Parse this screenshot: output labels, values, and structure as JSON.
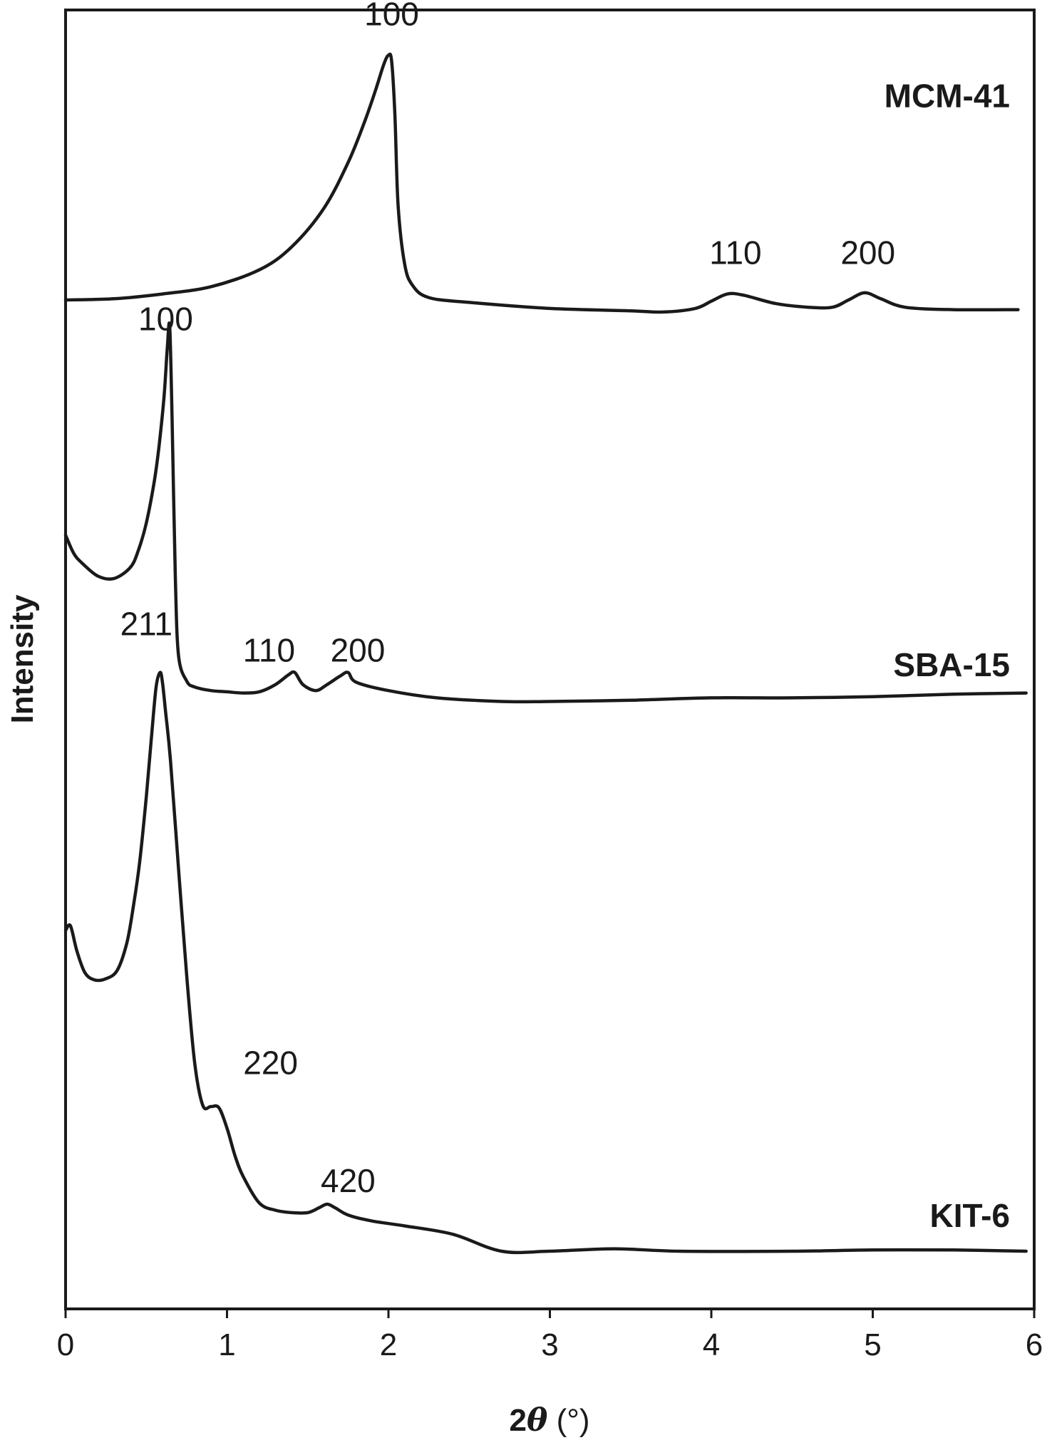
{
  "chart_data": {
    "type": "line",
    "title": "",
    "xlabel_prefix": "2",
    "xlabel_symbol": "θ",
    "xlabel_suffix": " (°)",
    "ylabel": "Intensity",
    "xlim": [
      0,
      6
    ],
    "ylim": [
      0,
      100
    ],
    "xticks": [
      0,
      1,
      2,
      3,
      4,
      5,
      6
    ],
    "grid": false,
    "yticks_shown": false,
    "line_color": "#1a1a1a",
    "series": [
      {
        "name": "MCM-41",
        "x": [
          0.0,
          0.3,
          0.6,
          0.9,
          1.2,
          1.4,
          1.6,
          1.75,
          1.85,
          1.92,
          1.97,
          2.0,
          2.02,
          2.04,
          2.06,
          2.1,
          2.15,
          2.25,
          2.5,
          3.0,
          3.5,
          3.7,
          3.9,
          4.0,
          4.1,
          4.2,
          4.4,
          4.6,
          4.75,
          4.85,
          4.95,
          5.05,
          5.2,
          5.5,
          5.9
        ],
        "y": [
          81.5,
          81.6,
          82.0,
          82.6,
          84.0,
          85.9,
          89.1,
          92.9,
          96.2,
          98.9,
          101.0,
          101.8,
          101.3,
          96.8,
          89.3,
          84.5,
          82.7,
          81.7,
          81.3,
          80.8,
          80.6,
          80.5,
          80.8,
          81.4,
          82.0,
          81.9,
          81.2,
          80.9,
          80.9,
          81.5,
          82.1,
          81.6,
          80.9,
          80.7,
          80.7
        ]
      },
      {
        "name": "SBA-15",
        "x": [
          0.0,
          0.05,
          0.1,
          0.2,
          0.3,
          0.4,
          0.45,
          0.5,
          0.55,
          0.58,
          0.61,
          0.63,
          0.645,
          0.66,
          0.68,
          0.7,
          0.75,
          0.8,
          0.9,
          1.0,
          1.1,
          1.2,
          1.3,
          1.38,
          1.42,
          1.47,
          1.55,
          1.62,
          1.7,
          1.75,
          1.8,
          2.0,
          2.3,
          2.7,
          3.0,
          3.5,
          4.0,
          4.5,
          5.0,
          5.5,
          5.95
        ],
        "y": [
          62.0,
          60.5,
          59.7,
          58.6,
          58.4,
          59.3,
          60.7,
          63.0,
          66.5,
          69.5,
          73.5,
          77.5,
          79.3,
          71.5,
          58.5,
          52.0,
          49.9,
          49.4,
          49.1,
          49.0,
          48.9,
          49.0,
          49.6,
          50.4,
          50.6,
          49.6,
          49.1,
          49.6,
          50.3,
          50.6,
          49.8,
          49.1,
          48.5,
          48.2,
          48.2,
          48.3,
          48.5,
          48.5,
          48.6,
          48.8,
          48.9
        ]
      },
      {
        "name": "KIT-6",
        "x": [
          0.0,
          0.03,
          0.07,
          0.12,
          0.18,
          0.25,
          0.32,
          0.38,
          0.42,
          0.46,
          0.5,
          0.53,
          0.56,
          0.585,
          0.6,
          0.62,
          0.65,
          0.7,
          0.75,
          0.8,
          0.85,
          0.9,
          0.95,
          1.0,
          1.05,
          1.1,
          1.2,
          1.3,
          1.4,
          1.5,
          1.57,
          1.62,
          1.67,
          1.75,
          1.9,
          2.1,
          2.4,
          2.7,
          3.0,
          3.4,
          3.8,
          4.5,
          5.0,
          5.5,
          5.95
        ],
        "y": [
          29.2,
          29.6,
          27.5,
          25.7,
          25.1,
          25.2,
          25.9,
          28.2,
          31.2,
          35.0,
          40.3,
          44.9,
          49.3,
          50.6,
          49.8,
          47.3,
          43.3,
          34.3,
          25.5,
          18.2,
          14.7,
          14.6,
          14.5,
          12.8,
          10.5,
          8.8,
          6.6,
          6.0,
          5.8,
          5.8,
          6.2,
          6.5,
          6.2,
          5.6,
          5.1,
          4.7,
          4.0,
          2.6,
          2.6,
          2.8,
          2.6,
          2.6,
          2.7,
          2.7,
          2.6
        ]
      }
    ],
    "series_labels": [
      {
        "text": "MCM-41",
        "x": 5.85,
        "y": 97.5,
        "anchor": "end"
      },
      {
        "text": "SBA-15",
        "x": 5.85,
        "y": 50.3,
        "anchor": "end"
      },
      {
        "text": "KIT-6",
        "x": 5.85,
        "y": 4.6,
        "anchor": "end"
      }
    ],
    "peak_labels": [
      {
        "text": "100",
        "x": 2.02,
        "y": 104.3
      },
      {
        "text": "110",
        "x": 4.15,
        "y": 84.5
      },
      {
        "text": "200",
        "x": 4.97,
        "y": 84.5
      },
      {
        "text": "100",
        "x": 0.62,
        "y": 79.0
      },
      {
        "text": "110",
        "x": 1.26,
        "y": 51.5
      },
      {
        "text": "200",
        "x": 1.81,
        "y": 51.5
      },
      {
        "text": "211",
        "x": 0.5,
        "y": 53.7
      },
      {
        "text": "220",
        "x": 1.27,
        "y": 17.3
      },
      {
        "text": "420",
        "x": 1.75,
        "y": 7.5
      }
    ]
  }
}
